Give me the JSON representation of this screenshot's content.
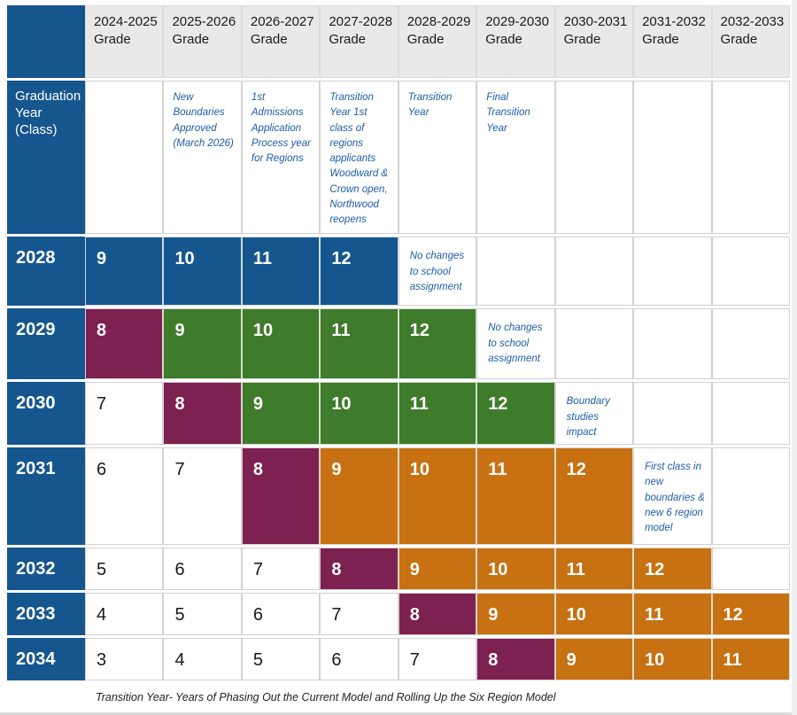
{
  "colors": {
    "blue": "#15568E",
    "green": "#3E7B2A",
    "maroon": "#7D2150",
    "orange": "#C77112",
    "header_bg": "#E9E9E9",
    "note_text": "#1F5BAA",
    "grid_line": "#D2D2D2",
    "body_text": "#1A1A1A"
  },
  "table": {
    "row_header_title": "Graduation Year (Class)",
    "column_headers": [
      "2024-2025 Grade",
      "2025-2026 Grade",
      "2026-2027 Grade",
      "2027-2028 Grade",
      "2028-2029 Grade",
      "2029-2030 Grade",
      "2030-2031 Grade",
      "2031-2032 Grade",
      "2032-2033 Grade"
    ],
    "column_notes": [
      "",
      "New Boundaries Approved (March 2026)",
      "1st Admissions Application Process year for Regions",
      "Transition Year 1st class of regions applicants Woodward & Crown open, Northwood reopens",
      "Transition Year",
      "Final Transition Year",
      "",
      "",
      ""
    ],
    "rows": [
      {
        "year": "2028",
        "cells": [
          {
            "t": "9",
            "c": "blue"
          },
          {
            "t": "10",
            "c": "blue"
          },
          {
            "t": "11",
            "c": "blue"
          },
          {
            "t": "12",
            "c": "blue"
          },
          {
            "t": "No changes to school assignment",
            "c": "note"
          },
          {
            "t": "",
            "c": "empty"
          },
          {
            "t": "",
            "c": "empty"
          },
          {
            "t": "",
            "c": "empty"
          },
          {
            "t": "",
            "c": "empty"
          }
        ]
      },
      {
        "year": "2029",
        "cells": [
          {
            "t": "8",
            "c": "maroon"
          },
          {
            "t": "9",
            "c": "green"
          },
          {
            "t": "10",
            "c": "green"
          },
          {
            "t": "11",
            "c": "green"
          },
          {
            "t": "12",
            "c": "green"
          },
          {
            "t": "No changes to school assignment",
            "c": "note"
          },
          {
            "t": "",
            "c": "empty"
          },
          {
            "t": "",
            "c": "empty"
          },
          {
            "t": "",
            "c": "empty"
          }
        ]
      },
      {
        "year": "2030",
        "cells": [
          {
            "t": "7",
            "c": "white"
          },
          {
            "t": "8",
            "c": "maroon"
          },
          {
            "t": "9",
            "c": "green"
          },
          {
            "t": "10",
            "c": "green"
          },
          {
            "t": "11",
            "c": "green"
          },
          {
            "t": "12",
            "c": "green"
          },
          {
            "t": "Boundary studies impact",
            "c": "note"
          },
          {
            "t": "",
            "c": "empty"
          },
          {
            "t": "",
            "c": "empty"
          }
        ]
      },
      {
        "year": "2031",
        "cells": [
          {
            "t": "6",
            "c": "white"
          },
          {
            "t": "7",
            "c": "white"
          },
          {
            "t": "8",
            "c": "maroon"
          },
          {
            "t": "9",
            "c": "orange"
          },
          {
            "t": "10",
            "c": "orange"
          },
          {
            "t": "11",
            "c": "orange"
          },
          {
            "t": "12",
            "c": "orange"
          },
          {
            "t": "First class in new boundaries & new 6 region model",
            "c": "note"
          },
          {
            "t": "",
            "c": "empty"
          }
        ]
      },
      {
        "year": "2032",
        "cells": [
          {
            "t": "5",
            "c": "white"
          },
          {
            "t": "6",
            "c": "white"
          },
          {
            "t": "7",
            "c": "white"
          },
          {
            "t": "8",
            "c": "maroon"
          },
          {
            "t": "9",
            "c": "orange"
          },
          {
            "t": "10",
            "c": "orange"
          },
          {
            "t": "11",
            "c": "orange"
          },
          {
            "t": "12",
            "c": "orange"
          },
          {
            "t": "",
            "c": "empty"
          }
        ]
      },
      {
        "year": "2033",
        "cells": [
          {
            "t": "4",
            "c": "white"
          },
          {
            "t": "5",
            "c": "white"
          },
          {
            "t": "6",
            "c": "white"
          },
          {
            "t": "7",
            "c": "white"
          },
          {
            "t": "8",
            "c": "maroon"
          },
          {
            "t": "9",
            "c": "orange"
          },
          {
            "t": "10",
            "c": "orange"
          },
          {
            "t": "11",
            "c": "orange"
          },
          {
            "t": "12",
            "c": "orange"
          }
        ]
      },
      {
        "year": "2034",
        "cells": [
          {
            "t": "3",
            "c": "white"
          },
          {
            "t": "4",
            "c": "white"
          },
          {
            "t": "5",
            "c": "white"
          },
          {
            "t": "6",
            "c": "white"
          },
          {
            "t": "7",
            "c": "white"
          },
          {
            "t": "8",
            "c": "maroon"
          },
          {
            "t": "9",
            "c": "orange"
          },
          {
            "t": "10",
            "c": "orange"
          },
          {
            "t": "11",
            "c": "orange"
          }
        ]
      }
    ],
    "footnote": "Transition Year- Years of Phasing Out the Current Model and Rolling Up the Six Region Model"
  }
}
